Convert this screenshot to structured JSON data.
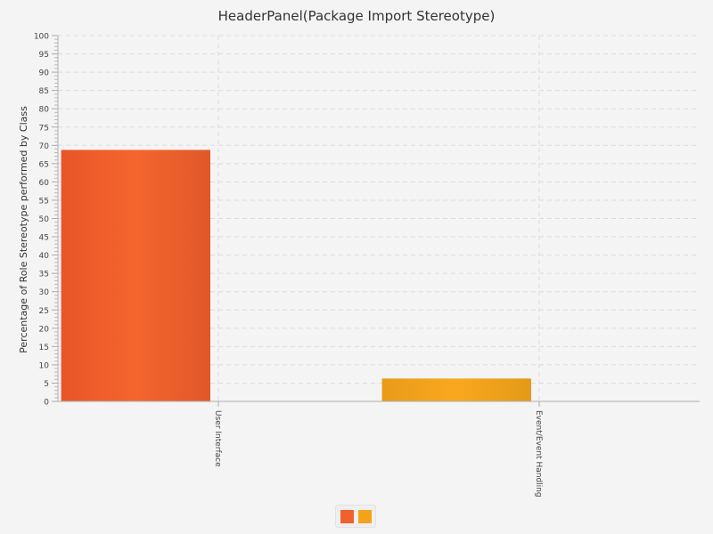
{
  "chart_data": {
    "type": "bar",
    "title": "HeaderPanel(Package Import Stereotype)",
    "ylabel": "Percentage of Role Stereotype performed by Class",
    "xlabel": "",
    "ylim": [
      0,
      100
    ],
    "ytick_step": 5,
    "grid": true,
    "categories": [
      "User Interface",
      "Event/Event Handling"
    ],
    "values": [
      68.75,
      6.25
    ],
    "colors": [
      "#f0612d",
      "#f5a21b"
    ],
    "legend": {
      "placement": "bottom-center",
      "entries": [
        "",
        ""
      ]
    }
  }
}
